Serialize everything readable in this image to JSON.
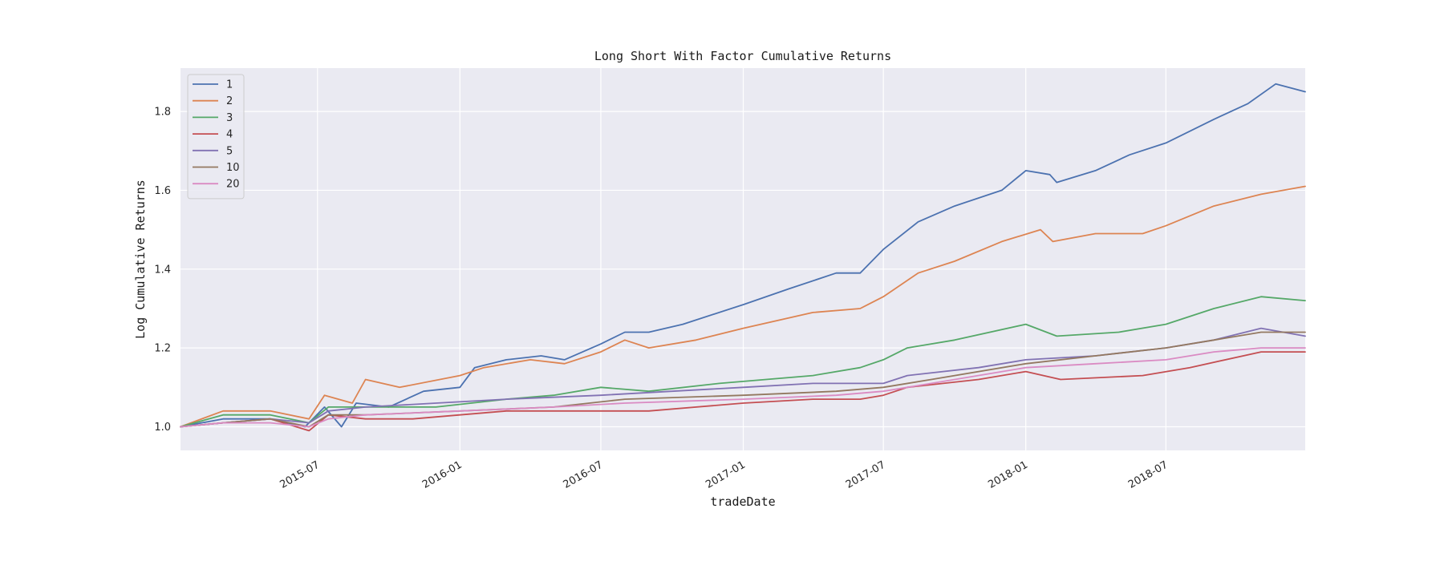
{
  "chart_data": {
    "type": "line",
    "title": "Long Short With Factor Cumulative Returns",
    "xlabel": "tradeDate",
    "ylabel": "Log Cumulative Returns",
    "x_ticks": [
      "2015-07",
      "2016-01",
      "2016-07",
      "2017-01",
      "2017-07",
      "2018-01",
      "2018-07"
    ],
    "y_ticks": [
      "1.0",
      "1.2",
      "1.4",
      "1.6",
      "1.8"
    ],
    "xlim": [
      "2015-01-05",
      "2018-12-28"
    ],
    "ylim": [
      0.94,
      1.91
    ],
    "grid": true,
    "legend_position": "upper-left",
    "background_color": "#eaeaf2",
    "series": [
      {
        "name": "1",
        "color": "#4c72b0",
        "points": [
          [
            "2015-01-05",
            1.0
          ],
          [
            "2015-03-01",
            1.02
          ],
          [
            "2015-05-01",
            1.02
          ],
          [
            "2015-06-15",
            1.0
          ],
          [
            "2015-07-10",
            1.05
          ],
          [
            "2015-08-01",
            1.0
          ],
          [
            "2015-08-20",
            1.06
          ],
          [
            "2015-10-01",
            1.05
          ],
          [
            "2015-11-15",
            1.09
          ],
          [
            "2016-01-01",
            1.1
          ],
          [
            "2016-01-20",
            1.15
          ],
          [
            "2016-03-01",
            1.17
          ],
          [
            "2016-04-15",
            1.18
          ],
          [
            "2016-05-15",
            1.17
          ],
          [
            "2016-07-01",
            1.21
          ],
          [
            "2016-08-01",
            1.24
          ],
          [
            "2016-09-01",
            1.24
          ],
          [
            "2016-10-15",
            1.26
          ],
          [
            "2017-01-01",
            1.31
          ],
          [
            "2017-03-01",
            1.35
          ],
          [
            "2017-05-01",
            1.39
          ],
          [
            "2017-06-01",
            1.39
          ],
          [
            "2017-07-01",
            1.45
          ],
          [
            "2017-08-15",
            1.52
          ],
          [
            "2017-10-01",
            1.56
          ],
          [
            "2017-12-01",
            1.6
          ],
          [
            "2018-01-01",
            1.65
          ],
          [
            "2018-02-01",
            1.64
          ],
          [
            "2018-02-10",
            1.62
          ],
          [
            "2018-04-01",
            1.65
          ],
          [
            "2018-05-15",
            1.69
          ],
          [
            "2018-07-01",
            1.72
          ],
          [
            "2018-09-01",
            1.78
          ],
          [
            "2018-10-15",
            1.82
          ],
          [
            "2018-11-20",
            1.87
          ],
          [
            "2018-12-28",
            1.85
          ]
        ]
      },
      {
        "name": "2",
        "color": "#dd8452",
        "points": [
          [
            "2015-01-05",
            1.0
          ],
          [
            "2015-03-01",
            1.04
          ],
          [
            "2015-05-01",
            1.04
          ],
          [
            "2015-06-20",
            1.02
          ],
          [
            "2015-07-10",
            1.08
          ],
          [
            "2015-08-15",
            1.06
          ],
          [
            "2015-09-01",
            1.12
          ],
          [
            "2015-10-15",
            1.1
          ],
          [
            "2016-01-01",
            1.13
          ],
          [
            "2016-02-01",
            1.15
          ],
          [
            "2016-04-01",
            1.17
          ],
          [
            "2016-05-15",
            1.16
          ],
          [
            "2016-07-01",
            1.19
          ],
          [
            "2016-08-01",
            1.22
          ],
          [
            "2016-09-01",
            1.2
          ],
          [
            "2016-11-01",
            1.22
          ],
          [
            "2017-01-01",
            1.25
          ],
          [
            "2017-04-01",
            1.29
          ],
          [
            "2017-06-01",
            1.3
          ],
          [
            "2017-07-01",
            1.33
          ],
          [
            "2017-08-15",
            1.39
          ],
          [
            "2017-10-01",
            1.42
          ],
          [
            "2017-12-01",
            1.47
          ],
          [
            "2018-01-20",
            1.5
          ],
          [
            "2018-02-05",
            1.47
          ],
          [
            "2018-04-01",
            1.49
          ],
          [
            "2018-06-01",
            1.49
          ],
          [
            "2018-07-01",
            1.51
          ],
          [
            "2018-09-01",
            1.56
          ],
          [
            "2018-11-01",
            1.59
          ],
          [
            "2018-12-28",
            1.61
          ]
        ]
      },
      {
        "name": "3",
        "color": "#55a868",
        "points": [
          [
            "2015-01-05",
            1.0
          ],
          [
            "2015-03-01",
            1.03
          ],
          [
            "2015-05-01",
            1.03
          ],
          [
            "2015-06-20",
            1.01
          ],
          [
            "2015-07-15",
            1.05
          ],
          [
            "2015-09-01",
            1.05
          ],
          [
            "2015-12-01",
            1.05
          ],
          [
            "2016-03-01",
            1.07
          ],
          [
            "2016-05-01",
            1.08
          ],
          [
            "2016-07-01",
            1.1
          ],
          [
            "2016-09-01",
            1.09
          ],
          [
            "2016-12-01",
            1.11
          ],
          [
            "2017-04-01",
            1.13
          ],
          [
            "2017-06-01",
            1.15
          ],
          [
            "2017-07-01",
            1.17
          ],
          [
            "2017-08-01",
            1.2
          ],
          [
            "2017-10-01",
            1.22
          ],
          [
            "2018-01-01",
            1.26
          ],
          [
            "2018-02-10",
            1.23
          ],
          [
            "2018-05-01",
            1.24
          ],
          [
            "2018-07-01",
            1.26
          ],
          [
            "2018-09-01",
            1.3
          ],
          [
            "2018-11-01",
            1.33
          ],
          [
            "2018-12-28",
            1.32
          ]
        ]
      },
      {
        "name": "4",
        "color": "#c44e52",
        "points": [
          [
            "2015-01-05",
            1.0
          ],
          [
            "2015-03-01",
            1.01
          ],
          [
            "2015-05-01",
            1.02
          ],
          [
            "2015-06-20",
            0.99
          ],
          [
            "2015-07-15",
            1.03
          ],
          [
            "2015-09-01",
            1.02
          ],
          [
            "2015-11-01",
            1.02
          ],
          [
            "2016-01-01",
            1.03
          ],
          [
            "2016-03-01",
            1.04
          ],
          [
            "2016-05-01",
            1.04
          ],
          [
            "2016-07-01",
            1.04
          ],
          [
            "2016-09-01",
            1.04
          ],
          [
            "2017-01-01",
            1.06
          ],
          [
            "2017-04-01",
            1.07
          ],
          [
            "2017-06-01",
            1.07
          ],
          [
            "2017-07-01",
            1.08
          ],
          [
            "2017-08-01",
            1.1
          ],
          [
            "2017-11-01",
            1.12
          ],
          [
            "2018-01-01",
            1.14
          ],
          [
            "2018-02-15",
            1.12
          ],
          [
            "2018-06-01",
            1.13
          ],
          [
            "2018-08-01",
            1.15
          ],
          [
            "2018-11-01",
            1.19
          ],
          [
            "2018-12-28",
            1.19
          ]
        ]
      },
      {
        "name": "5",
        "color": "#8172b3",
        "points": [
          [
            "2015-01-05",
            1.0
          ],
          [
            "2015-03-01",
            1.01
          ],
          [
            "2015-05-01",
            1.02
          ],
          [
            "2015-06-20",
            1.01
          ],
          [
            "2015-07-15",
            1.04
          ],
          [
            "2015-09-01",
            1.05
          ],
          [
            "2015-12-01",
            1.06
          ],
          [
            "2016-03-01",
            1.07
          ],
          [
            "2016-07-01",
            1.08
          ],
          [
            "2016-10-01",
            1.09
          ],
          [
            "2017-01-01",
            1.1
          ],
          [
            "2017-04-01",
            1.11
          ],
          [
            "2017-07-01",
            1.11
          ],
          [
            "2017-08-01",
            1.13
          ],
          [
            "2017-11-01",
            1.15
          ],
          [
            "2018-01-01",
            1.17
          ],
          [
            "2018-04-01",
            1.18
          ],
          [
            "2018-07-01",
            1.2
          ],
          [
            "2018-09-01",
            1.22
          ],
          [
            "2018-11-01",
            1.25
          ],
          [
            "2018-12-28",
            1.23
          ]
        ]
      },
      {
        "name": "10",
        "color": "#937860",
        "points": [
          [
            "2015-01-05",
            1.0
          ],
          [
            "2015-03-01",
            1.01
          ],
          [
            "2015-05-01",
            1.02
          ],
          [
            "2015-06-20",
            1.0
          ],
          [
            "2015-07-15",
            1.03
          ],
          [
            "2015-09-01",
            1.03
          ],
          [
            "2016-01-01",
            1.04
          ],
          [
            "2016-05-01",
            1.05
          ],
          [
            "2016-08-01",
            1.07
          ],
          [
            "2017-01-01",
            1.08
          ],
          [
            "2017-05-01",
            1.09
          ],
          [
            "2017-07-01",
            1.1
          ],
          [
            "2017-09-01",
            1.12
          ],
          [
            "2018-01-01",
            1.16
          ],
          [
            "2018-04-01",
            1.18
          ],
          [
            "2018-07-01",
            1.2
          ],
          [
            "2018-09-01",
            1.22
          ],
          [
            "2018-11-01",
            1.24
          ],
          [
            "2018-12-28",
            1.24
          ]
        ]
      },
      {
        "name": "20",
        "color": "#da8bc3",
        "points": [
          [
            "2015-01-05",
            1.0
          ],
          [
            "2015-03-01",
            1.01
          ],
          [
            "2015-05-01",
            1.01
          ],
          [
            "2015-06-20",
            1.0
          ],
          [
            "2015-07-15",
            1.02
          ],
          [
            "2015-09-01",
            1.03
          ],
          [
            "2016-01-01",
            1.04
          ],
          [
            "2016-05-01",
            1.05
          ],
          [
            "2016-08-01",
            1.06
          ],
          [
            "2017-01-01",
            1.07
          ],
          [
            "2017-05-01",
            1.08
          ],
          [
            "2017-07-01",
            1.09
          ],
          [
            "2017-09-01",
            1.11
          ],
          [
            "2018-01-01",
            1.15
          ],
          [
            "2018-04-01",
            1.16
          ],
          [
            "2018-07-01",
            1.17
          ],
          [
            "2018-09-01",
            1.19
          ],
          [
            "2018-11-01",
            1.2
          ],
          [
            "2018-12-28",
            1.2
          ]
        ]
      }
    ]
  }
}
